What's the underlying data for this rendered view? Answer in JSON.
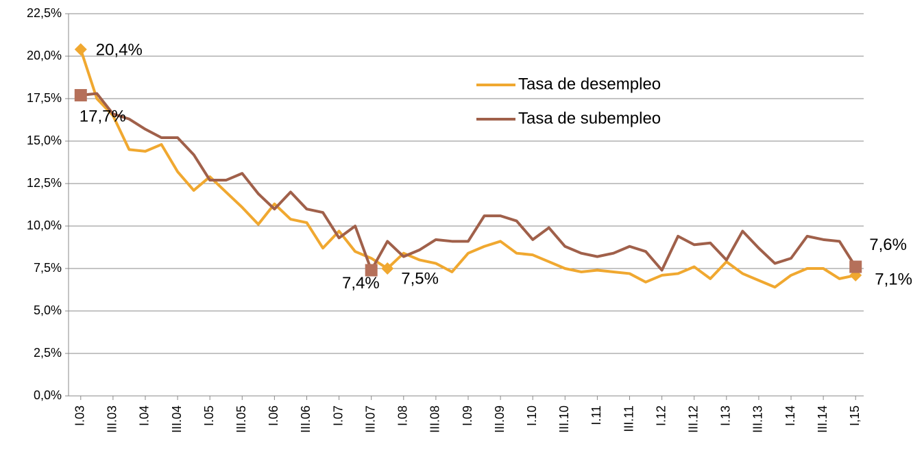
{
  "chart_data": {
    "type": "line",
    "categories": [
      "I.03",
      null,
      "III.03",
      null,
      "I.04",
      null,
      "III.04",
      null,
      "I.05",
      null,
      "III.05",
      null,
      "I.06",
      null,
      "III.06",
      null,
      "I.07",
      null,
      "III.07",
      null,
      "I.08",
      null,
      "III.08",
      null,
      "I.09",
      null,
      "III.09",
      null,
      "I.10",
      null,
      "III.10",
      null,
      "I.11",
      null,
      "III.11",
      null,
      "I.12",
      null,
      "III.12",
      null,
      "I.13",
      null,
      "III.13",
      null,
      "I.14",
      null,
      "III.14",
      null,
      "I,15"
    ],
    "series": [
      {
        "name": "Tasa de desempleo",
        "color": "#f0a830",
        "marker": "diamond",
        "values": [
          20.4,
          17.5,
          16.5,
          14.5,
          14.4,
          14.8,
          13.2,
          12.1,
          12.9,
          12.0,
          11.1,
          10.1,
          11.3,
          10.4,
          10.2,
          8.7,
          9.7,
          8.5,
          8.1,
          7.5,
          8.4,
          8.0,
          7.8,
          7.3,
          8.4,
          8.8,
          9.1,
          8.4,
          8.3,
          7.9,
          7.5,
          7.3,
          7.4,
          7.3,
          7.2,
          6.7,
          7.1,
          7.2,
          7.6,
          6.9,
          7.9,
          7.2,
          6.8,
          6.4,
          7.1,
          7.5,
          7.5,
          6.9,
          7.1
        ],
        "value_labels": [
          "20,4%",
          null,
          null,
          null,
          null,
          null,
          null,
          null,
          null,
          null,
          null,
          null,
          null,
          null,
          null,
          null,
          null,
          null,
          null,
          "7,5%",
          null,
          null,
          null,
          null,
          null,
          null,
          null,
          null,
          null,
          null,
          null,
          null,
          null,
          null,
          null,
          null,
          null,
          null,
          null,
          null,
          null,
          null,
          null,
          null,
          null,
          null,
          null,
          null,
          "7,1%"
        ]
      },
      {
        "name": "Tasa de subempleo",
        "color": "#a0604a",
        "marker": "square",
        "values": [
          17.7,
          17.8,
          16.6,
          16.3,
          15.7,
          15.2,
          15.2,
          14.2,
          12.7,
          12.7,
          13.1,
          11.9,
          11.0,
          12.0,
          11.0,
          10.8,
          9.3,
          10.0,
          7.4,
          9.1,
          8.2,
          8.6,
          9.2,
          9.1,
          9.1,
          10.6,
          10.6,
          10.3,
          9.2,
          9.9,
          8.8,
          8.4,
          8.2,
          8.4,
          8.8,
          8.5,
          7.4,
          9.4,
          8.9,
          9.0,
          8.0,
          9.7,
          8.7,
          7.8,
          8.1,
          9.4,
          9.2,
          9.1,
          7.6
        ],
        "value_labels": [
          "17,7%",
          null,
          null,
          null,
          null,
          null,
          null,
          null,
          null,
          null,
          null,
          null,
          null,
          null,
          null,
          null,
          null,
          null,
          "7,4%",
          null,
          null,
          null,
          null,
          null,
          null,
          null,
          null,
          null,
          null,
          null,
          null,
          null,
          null,
          null,
          null,
          null,
          null,
          null,
          null,
          null,
          null,
          null,
          null,
          null,
          null,
          null,
          null,
          null,
          "7,6%"
        ]
      }
    ],
    "ylim": [
      0,
      22.5
    ],
    "yticks": [
      {
        "value": 0,
        "label": "0,0%"
      },
      {
        "value": 2.5,
        "label": "2,5%"
      },
      {
        "value": 5,
        "label": "5,0%"
      },
      {
        "value": 7.5,
        "label": "7,5%"
      },
      {
        "value": 10,
        "label": "10,0%"
      },
      {
        "value": 12.5,
        "label": "12,5%"
      },
      {
        "value": 15,
        "label": "15,0%"
      },
      {
        "value": 17.5,
        "label": "17,5%"
      },
      {
        "value": 20,
        "label": "20,0%"
      },
      {
        "value": 22.5,
        "label": "22,5%"
      }
    ],
    "grid": true
  }
}
